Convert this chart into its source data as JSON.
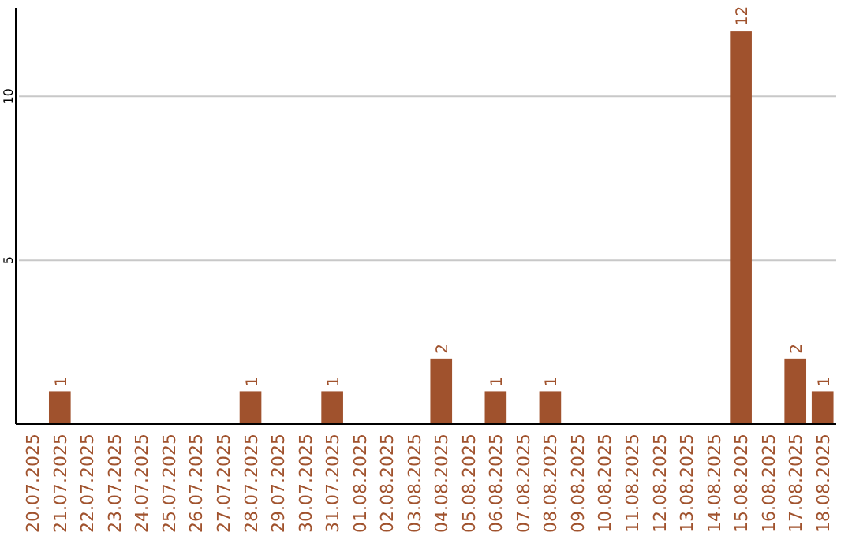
{
  "chart_data": {
    "type": "bar",
    "categories": [
      "20.07.2025",
      "21.07.2025",
      "22.07.2025",
      "23.07.2025",
      "24.07.2025",
      "25.07.2025",
      "26.07.2025",
      "27.07.2025",
      "28.07.2025",
      "29.07.2025",
      "30.07.2025",
      "31.07.2025",
      "01.08.2025",
      "02.08.2025",
      "03.08.2025",
      "04.08.2025",
      "05.08.2025",
      "06.08.2025",
      "07.08.2025",
      "08.08.2025",
      "09.08.2025",
      "10.08.2025",
      "11.08.2025",
      "12.08.2025",
      "13.08.2025",
      "14.08.2025",
      "15.08.2025",
      "16.08.2025",
      "17.08.2025",
      "18.08.2025"
    ],
    "values": [
      0,
      1,
      0,
      0,
      0,
      0,
      0,
      0,
      1,
      0,
      0,
      1,
      0,
      0,
      0,
      2,
      0,
      1,
      0,
      1,
      0,
      0,
      0,
      0,
      0,
      0,
      12,
      0,
      2,
      1
    ],
    "value_labels": [
      null,
      "1",
      null,
      null,
      null,
      null,
      null,
      null,
      "1",
      null,
      null,
      "1",
      null,
      null,
      null,
      "2",
      null,
      "1",
      null,
      "1",
      null,
      null,
      null,
      null,
      null,
      null,
      "12",
      null,
      "2",
      "1"
    ],
    "color": "#a0522d",
    "ylim": [
      0,
      12.7
    ],
    "yticks": [
      5,
      10
    ],
    "grid": "y"
  }
}
